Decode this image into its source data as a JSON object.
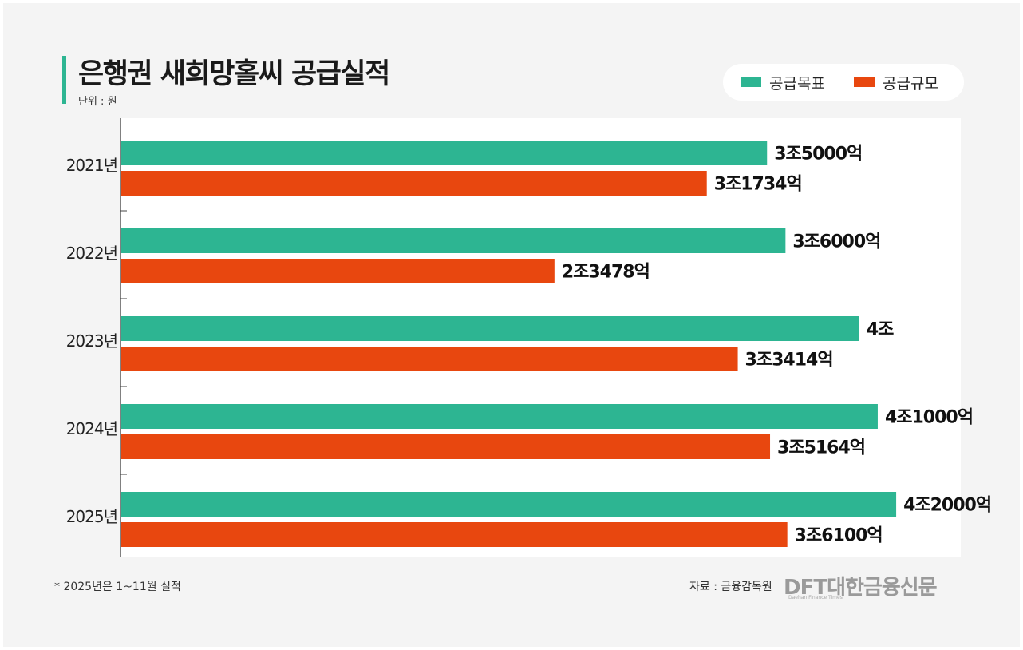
{
  "chart_data": {
    "type": "bar",
    "orientation": "horizontal",
    "title": "은행권 새희망홀씨 공급실적",
    "unit_label": "단위 : 원",
    "categories": [
      "2021년",
      "2022년",
      "2023년",
      "2024년",
      "2025년"
    ],
    "series": [
      {
        "name": "공급목표",
        "color": "#2db592",
        "values": [
          35000,
          36000,
          40000,
          41000,
          42000
        ],
        "value_unit": "억원",
        "labels": [
          "3조5000억",
          "3조6000억",
          "4조",
          "4조1000억",
          "4조2000억"
        ]
      },
      {
        "name": "공급규모",
        "color": "#e8470f",
        "values": [
          31734,
          23478,
          33414,
          35164,
          36100
        ],
        "value_unit": "억원",
        "labels": [
          "3조1734억",
          "2조3478억",
          "3조3414억",
          "3조5164억",
          "3조6100억"
        ]
      }
    ],
    "xlim": [
      0,
      45500
    ],
    "grid": false,
    "legend_position": "top-right"
  },
  "footnote": "* 2025년은 1~11월 실적",
  "source": "자료 : 금융감독원",
  "logo": {
    "text": "DFT대한금융신문",
    "subtext": "Daehan Finance Times"
  }
}
